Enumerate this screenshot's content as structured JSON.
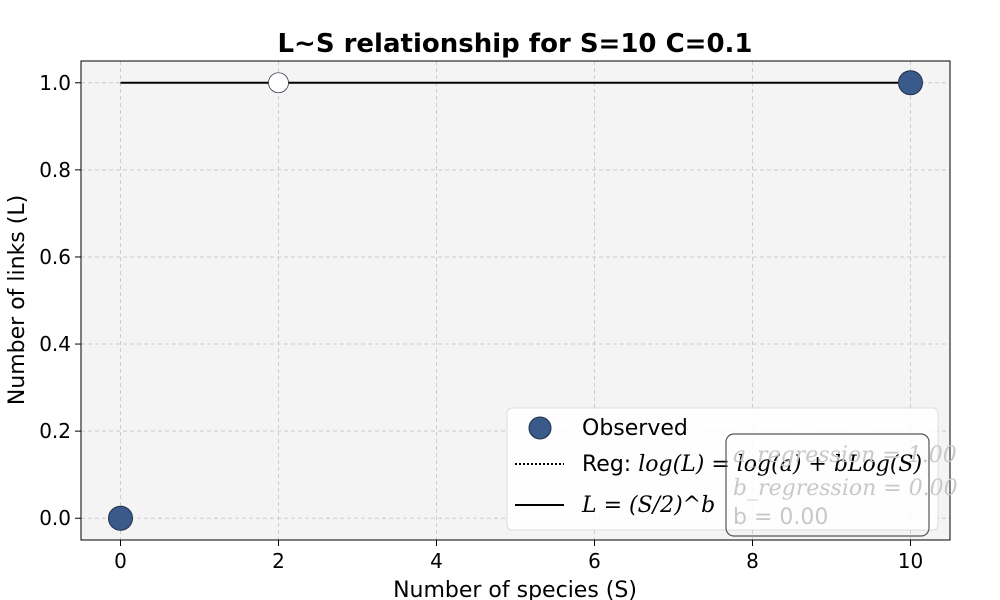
{
  "chart_data": {
    "type": "scatter",
    "title": "L~S relationship for S=10 C=0.1",
    "xlabel": "Number of species (S)",
    "ylabel": "Number of links (L)",
    "xlim": [
      -0.5,
      10.5
    ],
    "ylim": [
      -0.05,
      1.05
    ],
    "xticks": [
      0,
      2,
      4,
      6,
      8,
      10
    ],
    "yticks": [
      0.0,
      0.2,
      0.4,
      0.6,
      0.8,
      1.0
    ],
    "xtick_labels": [
      "0",
      "2",
      "4",
      "6",
      "8",
      "10"
    ],
    "ytick_labels": [
      "0.0",
      "0.2",
      "0.4",
      "0.6",
      "0.8",
      "1.0"
    ],
    "grid": true,
    "colors": {
      "observed": "#3a5a8c",
      "background": "#f4f4f4",
      "annotation": "#c8c8c8"
    },
    "observed": {
      "x": [
        0,
        10
      ],
      "y": [
        0,
        1
      ]
    },
    "open_marker": {
      "x": 2,
      "y": 1
    },
    "fit_line": {
      "x": [
        0,
        10
      ],
      "y": [
        1,
        1
      ]
    },
    "legend": {
      "placement": "lower-right",
      "observed": "Observed",
      "reg_prefix": "Reg: ",
      "reg_formula": "log(L) = log(a) + bLog(S)",
      "power_formula": "L = (S/2)^b"
    },
    "annotation": {
      "a_text": "a_regression = 1.00",
      "b_text": "b_regression = 0.00",
      "b_plain": "b = 0.00"
    }
  }
}
